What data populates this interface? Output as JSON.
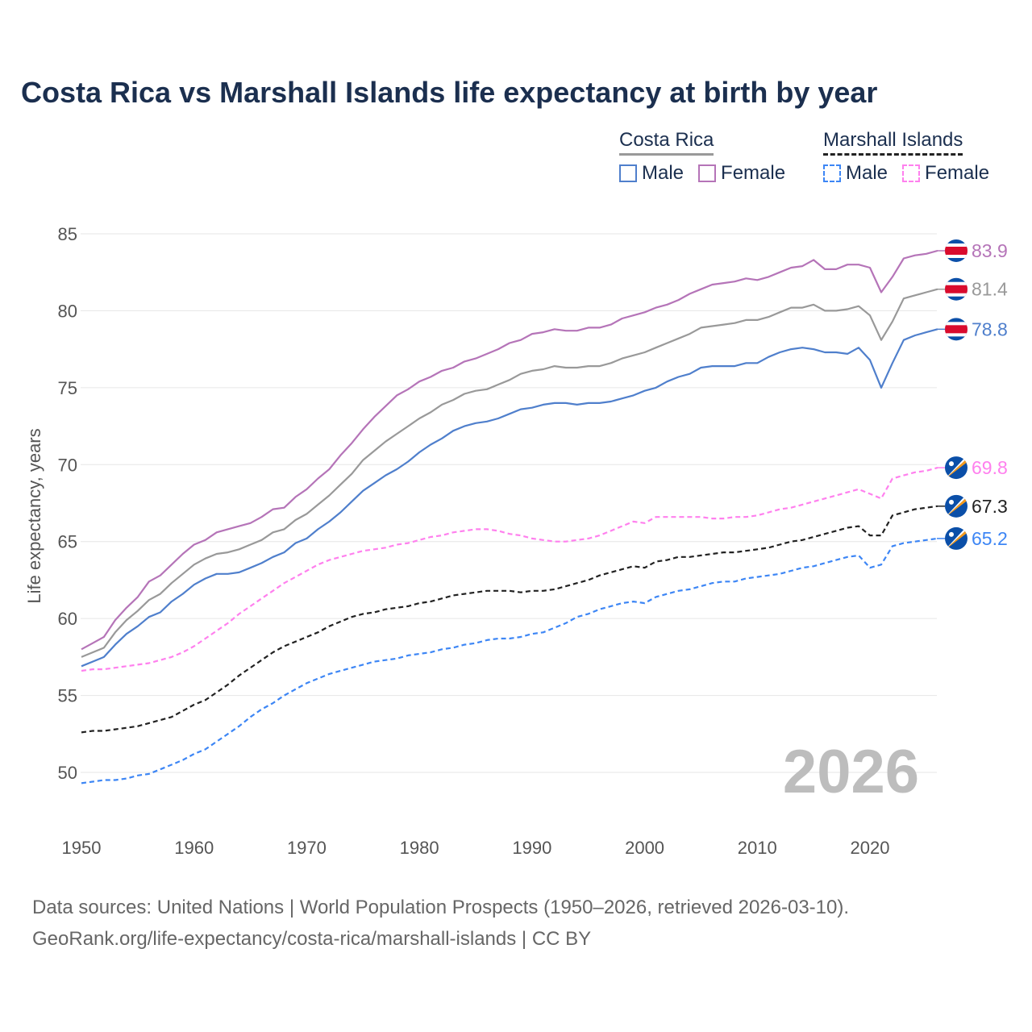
{
  "title": "Costa Rica vs Marshall Islands life expectancy at birth by year",
  "legend": {
    "groups": [
      {
        "name": "Costa Rica",
        "items": [
          "Male",
          "Female"
        ]
      },
      {
        "name": "Marshall Islands",
        "items": [
          "Male",
          "Female"
        ]
      }
    ]
  },
  "watermark_year": "2026",
  "footer": {
    "line1": "Data sources: United Nations | World Population Prospects (1950–2026, retrieved 2026-03-10).",
    "line2": "GeoRank.org/life-expectancy/costa-rica/marshall-islands | CC BY"
  },
  "chart_data": {
    "type": "line",
    "title": "Costa Rica vs Marshall Islands life expectancy at birth by year",
    "xlabel": "",
    "ylabel": "Life expectancy, years",
    "xlim": [
      1950,
      2026
    ],
    "ylim": [
      47.5,
      86
    ],
    "x_ticks": [
      "1950",
      "1960",
      "1970",
      "1980",
      "1990",
      "2000",
      "2010",
      "2020"
    ],
    "y_ticks": [
      "50",
      "55",
      "60",
      "65",
      "70",
      "75",
      "80",
      "85"
    ],
    "grid": true,
    "legend_position": "top-right",
    "x_start": 1950,
    "series": [
      {
        "name": "Costa Rica Female",
        "color": "#b574b8",
        "dashed": false,
        "flag": "costa-rica",
        "end_label": "83.9",
        "values": [
          58.0,
          58.4,
          58.8,
          59.9,
          60.7,
          61.4,
          62.4,
          62.8,
          63.5,
          64.2,
          64.8,
          65.1,
          65.6,
          65.8,
          66.0,
          66.2,
          66.6,
          67.1,
          67.2,
          67.9,
          68.4,
          69.1,
          69.7,
          70.6,
          71.4,
          72.3,
          73.1,
          73.8,
          74.5,
          74.9,
          75.4,
          75.7,
          76.1,
          76.3,
          76.7,
          76.9,
          77.2,
          77.5,
          77.9,
          78.1,
          78.5,
          78.6,
          78.8,
          78.7,
          78.7,
          78.9,
          78.9,
          79.1,
          79.5,
          79.7,
          79.9,
          80.2,
          80.4,
          80.7,
          81.1,
          81.4,
          81.7,
          81.8,
          81.9,
          82.1,
          82.0,
          82.2,
          82.5,
          82.8,
          82.9,
          83.3,
          82.7,
          82.7,
          83.0,
          83.0,
          82.8,
          81.2,
          82.2,
          83.4,
          83.6,
          83.7,
          83.9
        ]
      },
      {
        "name": "Costa Rica Total",
        "color": "#999999",
        "dashed": false,
        "flag": "costa-rica",
        "end_label": "81.4",
        "values": [
          57.5,
          57.8,
          58.1,
          59.1,
          59.9,
          60.5,
          61.2,
          61.6,
          62.3,
          62.9,
          63.5,
          63.9,
          64.2,
          64.3,
          64.5,
          64.8,
          65.1,
          65.6,
          65.8,
          66.4,
          66.8,
          67.4,
          68.0,
          68.7,
          69.4,
          70.3,
          70.9,
          71.5,
          72.0,
          72.5,
          73.0,
          73.4,
          73.9,
          74.2,
          74.6,
          74.8,
          74.9,
          75.2,
          75.5,
          75.9,
          76.1,
          76.2,
          76.4,
          76.3,
          76.3,
          76.4,
          76.4,
          76.6,
          76.9,
          77.1,
          77.3,
          77.6,
          77.9,
          78.2,
          78.5,
          78.9,
          79.0,
          79.1,
          79.2,
          79.4,
          79.4,
          79.6,
          79.9,
          80.2,
          80.2,
          80.4,
          80.0,
          80.0,
          80.1,
          80.3,
          79.7,
          78.1,
          79.3,
          80.8,
          81.0,
          81.2,
          81.4
        ]
      },
      {
        "name": "Costa Rica Male",
        "color": "#4f7fcc",
        "dashed": false,
        "flag": "costa-rica",
        "end_label": "78.8",
        "values": [
          56.9,
          57.2,
          57.5,
          58.3,
          59.0,
          59.5,
          60.1,
          60.4,
          61.1,
          61.6,
          62.2,
          62.6,
          62.9,
          62.9,
          63.0,
          63.3,
          63.6,
          64.0,
          64.3,
          64.9,
          65.2,
          65.8,
          66.3,
          66.9,
          67.6,
          68.3,
          68.8,
          69.3,
          69.7,
          70.2,
          70.8,
          71.3,
          71.7,
          72.2,
          72.5,
          72.7,
          72.8,
          73.0,
          73.3,
          73.6,
          73.7,
          73.9,
          74.0,
          74.0,
          73.9,
          74.0,
          74.0,
          74.1,
          74.3,
          74.5,
          74.8,
          75.0,
          75.4,
          75.7,
          75.9,
          76.3,
          76.4,
          76.4,
          76.4,
          76.6,
          76.6,
          77.0,
          77.3,
          77.5,
          77.6,
          77.5,
          77.3,
          77.3,
          77.2,
          77.6,
          76.8,
          75.0,
          76.6,
          78.1,
          78.4,
          78.6,
          78.8
        ]
      },
      {
        "name": "Marshall Islands Female",
        "color": "#ff80ee",
        "dashed": true,
        "flag": "marshall-islands",
        "end_label": "69.8",
        "values": [
          56.6,
          56.7,
          56.7,
          56.8,
          56.9,
          57.0,
          57.1,
          57.3,
          57.5,
          57.8,
          58.2,
          58.7,
          59.2,
          59.7,
          60.3,
          60.8,
          61.3,
          61.8,
          62.3,
          62.7,
          63.1,
          63.5,
          63.8,
          64.0,
          64.2,
          64.4,
          64.5,
          64.6,
          64.8,
          64.9,
          65.1,
          65.3,
          65.4,
          65.6,
          65.7,
          65.8,
          65.8,
          65.7,
          65.5,
          65.4,
          65.2,
          65.1,
          65.0,
          65.0,
          65.1,
          65.2,
          65.4,
          65.7,
          66.0,
          66.3,
          66.2,
          66.6,
          66.6,
          66.6,
          66.6,
          66.6,
          66.5,
          66.5,
          66.6,
          66.6,
          66.7,
          66.9,
          67.1,
          67.2,
          67.4,
          67.6,
          67.8,
          68.0,
          68.2,
          68.4,
          68.1,
          67.8,
          69.1,
          69.3,
          69.5,
          69.6,
          69.8
        ]
      },
      {
        "name": "Marshall Islands Total",
        "color": "#222222",
        "dashed": true,
        "flag": "marshall-islands",
        "end_label": "67.3",
        "values": [
          52.6,
          52.7,
          52.7,
          52.8,
          52.9,
          53.0,
          53.2,
          53.4,
          53.6,
          54.0,
          54.4,
          54.7,
          55.2,
          55.7,
          56.3,
          56.8,
          57.3,
          57.8,
          58.2,
          58.5,
          58.8,
          59.1,
          59.5,
          59.8,
          60.1,
          60.3,
          60.4,
          60.6,
          60.7,
          60.8,
          61.0,
          61.1,
          61.3,
          61.5,
          61.6,
          61.7,
          61.8,
          61.8,
          61.8,
          61.7,
          61.8,
          61.8,
          61.9,
          62.1,
          62.3,
          62.5,
          62.8,
          63.0,
          63.2,
          63.4,
          63.3,
          63.7,
          63.8,
          64.0,
          64.0,
          64.1,
          64.2,
          64.3,
          64.3,
          64.4,
          64.5,
          64.6,
          64.8,
          65.0,
          65.1,
          65.3,
          65.5,
          65.7,
          65.9,
          66.0,
          65.4,
          65.4,
          66.7,
          66.9,
          67.1,
          67.2,
          67.3
        ]
      },
      {
        "name": "Marshall Islands Male",
        "color": "#3d86f5",
        "dashed": true,
        "flag": "marshall-islands",
        "end_label": "65.2",
        "values": [
          49.3,
          49.4,
          49.5,
          49.5,
          49.6,
          49.8,
          49.9,
          50.2,
          50.5,
          50.8,
          51.2,
          51.5,
          52.0,
          52.5,
          53.0,
          53.6,
          54.1,
          54.5,
          55.0,
          55.4,
          55.8,
          56.1,
          56.4,
          56.6,
          56.8,
          57.0,
          57.2,
          57.3,
          57.4,
          57.6,
          57.7,
          57.8,
          58.0,
          58.1,
          58.3,
          58.4,
          58.6,
          58.7,
          58.7,
          58.8,
          59.0,
          59.1,
          59.4,
          59.7,
          60.1,
          60.3,
          60.6,
          60.8,
          61.0,
          61.1,
          61.0,
          61.4,
          61.6,
          61.8,
          61.9,
          62.1,
          62.3,
          62.4,
          62.4,
          62.6,
          62.7,
          62.8,
          62.9,
          63.1,
          63.3,
          63.4,
          63.6,
          63.8,
          64.0,
          64.1,
          63.3,
          63.5,
          64.7,
          64.9,
          65.0,
          65.1,
          65.2
        ]
      }
    ]
  }
}
